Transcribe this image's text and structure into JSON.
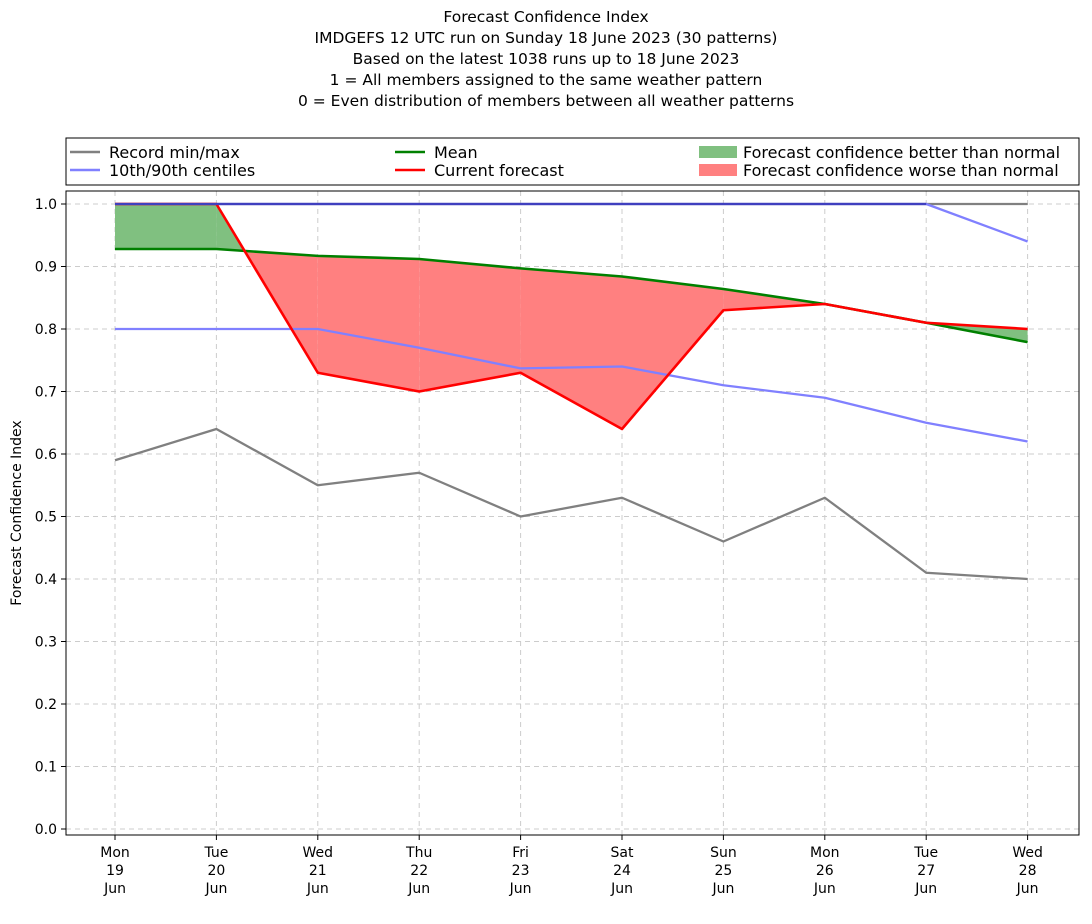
{
  "titles": [
    "Forecast Confidence Index",
    "IMDGEFS 12 UTC run on Sunday 18 June 2023 (30 patterns)",
    "Based on the latest 1038 runs up to 18 June 2023",
    "1 = All members assigned to the same weather pattern",
    "0 = Even distribution of members between all weather patterns"
  ],
  "colors": {
    "record": "#808080",
    "centiles": "#8080ff",
    "centiles_overlap": "#4040bf",
    "mean": "#008000",
    "current": "#ff0000",
    "fill_better": "#80c080",
    "fill_worse": "#ff8080",
    "grid": "#cccccc"
  },
  "chart_data": {
    "type": "line",
    "ylabel": "Forecast Confidence Index",
    "xlabel": "",
    "ylim": [
      0,
      1.0
    ],
    "yticks": [
      "0.0",
      "0.1",
      "0.2",
      "0.3",
      "0.4",
      "0.5",
      "0.6",
      "0.7",
      "0.8",
      "0.9",
      "1.0"
    ],
    "grid": true,
    "legend_position": "top",
    "categories": [
      [
        "Mon",
        "19",
        "Jun"
      ],
      [
        "Tue",
        "20",
        "Jun"
      ],
      [
        "Wed",
        "21",
        "Jun"
      ],
      [
        "Thu",
        "22",
        "Jun"
      ],
      [
        "Fri",
        "23",
        "Jun"
      ],
      [
        "Sat",
        "24",
        "Jun"
      ],
      [
        "Sun",
        "25",
        "Jun"
      ],
      [
        "Mon",
        "26",
        "Jun"
      ],
      [
        "Tue",
        "27",
        "Jun"
      ],
      [
        "Wed",
        "28",
        "Jun"
      ]
    ],
    "series": [
      {
        "key": "record_max",
        "name": "Record min/max",
        "values": [
          1.0,
          1.0,
          1.0,
          1.0,
          1.0,
          1.0,
          1.0,
          1.0,
          1.0,
          1.0
        ]
      },
      {
        "key": "record_min",
        "name": "Record min/max",
        "values": [
          0.59,
          0.64,
          0.55,
          0.57,
          0.5,
          0.53,
          0.46,
          0.53,
          0.41,
          0.4
        ]
      },
      {
        "key": "p90",
        "name": "10th/90th centiles",
        "values": [
          1.0,
          1.0,
          1.0,
          1.0,
          1.0,
          1.0,
          1.0,
          1.0,
          1.0,
          0.94
        ]
      },
      {
        "key": "p10",
        "name": "10th/90th centiles",
        "values": [
          0.8,
          0.8,
          0.8,
          0.77,
          0.737,
          0.74,
          0.71,
          0.69,
          0.65,
          0.62
        ]
      },
      {
        "key": "mean",
        "name": "Mean",
        "values": [
          0.928,
          0.928,
          0.917,
          0.912,
          0.897,
          0.884,
          0.864,
          0.84,
          0.81,
          0.779
        ]
      },
      {
        "key": "current",
        "name": "Current forecast",
        "values": [
          1.0,
          1.0,
          0.73,
          0.7,
          0.73,
          0.64,
          0.83,
          0.84,
          0.81,
          0.8
        ]
      }
    ],
    "legend": [
      {
        "label": "Record min/max",
        "kind": "line",
        "color_key": "record"
      },
      {
        "label": "10th/90th centiles",
        "kind": "line",
        "color_key": "centiles"
      },
      {
        "label": "Mean",
        "kind": "line",
        "color_key": "mean"
      },
      {
        "label": "Current forecast",
        "kind": "line",
        "color_key": "current"
      },
      {
        "label": "Forecast confidence better than normal",
        "kind": "patch",
        "color_key": "fill_better"
      },
      {
        "label": "Forecast confidence worse than normal",
        "kind": "patch",
        "color_key": "fill_worse"
      }
    ]
  }
}
